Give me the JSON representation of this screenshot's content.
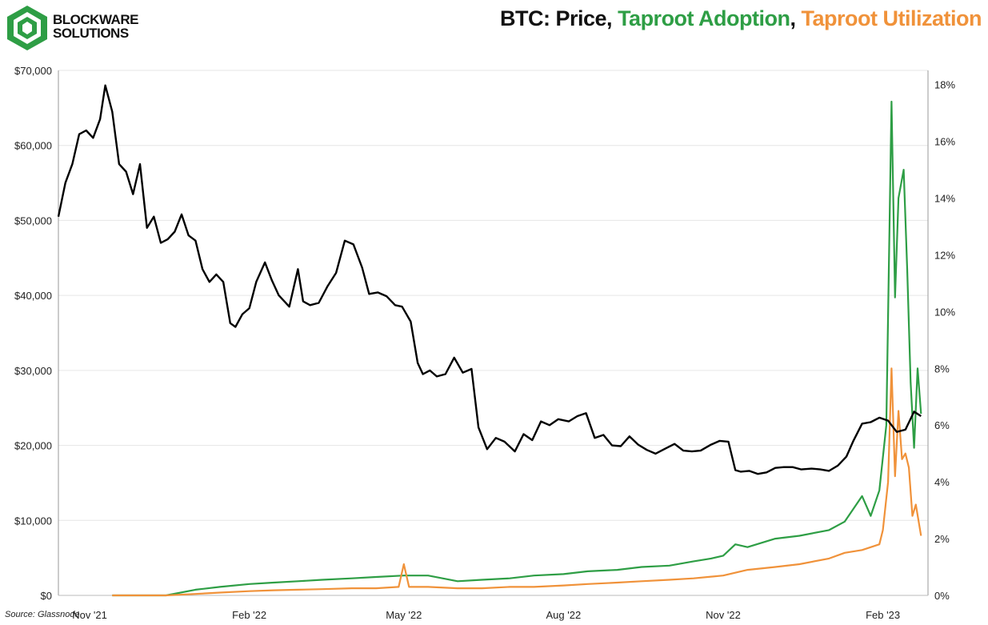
{
  "header": {
    "brand_line1": "BLOCKWARE",
    "brand_line2": "SOLUTIONS",
    "title_parts": [
      {
        "text": "BTC: Price, ",
        "color": "#111111"
      },
      {
        "text": "Taproot Adoption",
        "color": "#2e9e45"
      },
      {
        "text": ", ",
        "color": "#111111"
      },
      {
        "text": "Taproot Utilization",
        "color": "#f0923a"
      }
    ]
  },
  "footer": {
    "source": "Source: Glassnode"
  },
  "colors": {
    "price": "#000000",
    "adoption": "#2e9e45",
    "utilization": "#f0923a",
    "grid": "#e6e6e6",
    "brand": "#2e9e45"
  },
  "chart_data": {
    "type": "line",
    "title": "BTC: Price, Taproot Adoption, Taproot Utilization",
    "x_tick_labels": [
      "Nov '21",
      "Feb '22",
      "May '22",
      "Aug '22",
      "Nov '22",
      "Feb '23"
    ],
    "x_tick_dates": [
      "2021-11-01",
      "2022-02-01",
      "2022-05-01",
      "2022-08-01",
      "2022-11-01",
      "2023-02-01"
    ],
    "xlim": [
      "2021-10-14",
      "2023-02-27"
    ],
    "y_left": {
      "ylim": [
        0,
        70000
      ],
      "tick_labels": [
        "$0",
        "$10,000",
        "$20,000",
        "$30,000",
        "$40,000",
        "$50,000",
        "$60,000",
        "$70,000"
      ]
    },
    "y_right": {
      "ylim": [
        0,
        18.5
      ],
      "tick_labels": [
        "0%",
        "2%",
        "4%",
        "6%",
        "8%",
        "10%",
        "12%",
        "14%",
        "16%",
        "18%"
      ]
    },
    "grid": true,
    "series": [
      {
        "axis": "left",
        "x": [
          "2021-10-14",
          "2021-10-18",
          "2021-10-22",
          "2021-10-26",
          "2021-10-30",
          "2021-11-03",
          "2021-11-07",
          "2021-11-10",
          "2021-11-14",
          "2021-11-18",
          "2021-11-22",
          "2021-11-26",
          "2021-11-30",
          "2021-12-04",
          "2021-12-08",
          "2021-12-12",
          "2021-12-16",
          "2021-12-20",
          "2021-12-24",
          "2021-12-28",
          "2022-01-01",
          "2022-01-05",
          "2022-01-09",
          "2022-01-13",
          "2022-01-17",
          "2022-01-21",
          "2022-01-24",
          "2022-01-28",
          "2022-02-01",
          "2022-02-05",
          "2022-02-10",
          "2022-02-14",
          "2022-02-18",
          "2022-02-24",
          "2022-03-01",
          "2022-03-04",
          "2022-03-08",
          "2022-03-13",
          "2022-03-18",
          "2022-03-23",
          "2022-03-28",
          "2022-04-02",
          "2022-04-07",
          "2022-04-11",
          "2022-04-16",
          "2022-04-21",
          "2022-04-26",
          "2022-04-30",
          "2022-05-05",
          "2022-05-09",
          "2022-05-12",
          "2022-05-16",
          "2022-05-20",
          "2022-05-25",
          "2022-05-30",
          "2022-06-04",
          "2022-06-09",
          "2022-06-13",
          "2022-06-18",
          "2022-06-23",
          "2022-06-28",
          "2022-07-04",
          "2022-07-09",
          "2022-07-14",
          "2022-07-19",
          "2022-07-24",
          "2022-07-29",
          "2022-08-04",
          "2022-08-09",
          "2022-08-14",
          "2022-08-19",
          "2022-08-24",
          "2022-08-29",
          "2022-09-03",
          "2022-09-08",
          "2022-09-13",
          "2022-09-18",
          "2022-09-23",
          "2022-09-28",
          "2022-10-04",
          "2022-10-09",
          "2022-10-14",
          "2022-10-19",
          "2022-10-25",
          "2022-10-30",
          "2022-11-04",
          "2022-11-08",
          "2022-11-11",
          "2022-11-16",
          "2022-11-21",
          "2022-11-26",
          "2022-12-01",
          "2022-12-06",
          "2022-12-11",
          "2022-12-16",
          "2022-12-22",
          "2022-12-27",
          "2023-01-01",
          "2023-01-06",
          "2023-01-11",
          "2023-01-15",
          "2023-01-20",
          "2023-01-25",
          "2023-01-30",
          "2023-02-04",
          "2023-02-09",
          "2023-02-14",
          "2023-02-19",
          "2023-02-23"
        ],
        "values": [
          50500,
          55000,
          57500,
          61500,
          62000,
          61000,
          63500,
          68000,
          64500,
          57500,
          56500,
          53500,
          57500,
          49000,
          50500,
          47000,
          47500,
          48500,
          50800,
          48000,
          47300,
          43500,
          41800,
          42800,
          41800,
          36300,
          35800,
          37500,
          38300,
          41800,
          44400,
          42000,
          40000,
          38500,
          43500,
          39200,
          38700,
          39000,
          41200,
          43000,
          47300,
          46800,
          43700,
          40200,
          40400,
          39900,
          38700,
          38500,
          36500,
          31000,
          29500,
          30000,
          29200,
          29500,
          31700,
          29700,
          30200,
          22400,
          19500,
          21000,
          20500,
          19200,
          21500,
          20700,
          23200,
          22700,
          23500,
          23200,
          23900,
          24300,
          21000,
          21400,
          20000,
          19900,
          21200,
          20100,
          19400,
          18900,
          19500,
          20200,
          19300,
          19200,
          19300,
          20100,
          20600,
          20500,
          16700,
          16500,
          16600,
          16200,
          16400,
          17000,
          17100,
          17100,
          16800,
          16900,
          16800,
          16600,
          17300,
          18500,
          20600,
          22900,
          23100,
          23700,
          23300,
          21800,
          22100,
          24500,
          23900
        ]
      },
      {
        "axis": "right",
        "x": [
          "2021-11-14",
          "2021-12-01",
          "2021-12-15",
          "2022-01-01",
          "2022-01-15",
          "2022-02-01",
          "2022-02-15",
          "2022-03-01",
          "2022-03-15",
          "2022-04-01",
          "2022-04-15",
          "2022-05-01",
          "2022-05-15",
          "2022-06-01",
          "2022-06-15",
          "2022-07-01",
          "2022-07-15",
          "2022-08-01",
          "2022-08-15",
          "2022-09-01",
          "2022-09-15",
          "2022-10-01",
          "2022-10-15",
          "2022-10-25",
          "2022-11-01",
          "2022-11-08",
          "2022-11-15",
          "2022-12-01",
          "2022-12-15",
          "2023-01-01",
          "2023-01-10",
          "2023-01-20",
          "2023-01-25",
          "2023-01-30",
          "2023-02-03",
          "2023-02-06",
          "2023-02-08",
          "2023-02-10",
          "2023-02-13",
          "2023-02-15",
          "2023-02-17",
          "2023-02-19",
          "2023-02-21",
          "2023-02-23"
        ],
        "values": [
          0.0,
          0.0,
          0.0,
          0.2,
          0.3,
          0.4,
          0.45,
          0.5,
          0.55,
          0.6,
          0.65,
          0.7,
          0.7,
          0.5,
          0.55,
          0.6,
          0.7,
          0.75,
          0.85,
          0.9,
          1.0,
          1.05,
          1.2,
          1.3,
          1.4,
          1.8,
          1.7,
          2.0,
          2.1,
          2.3,
          2.6,
          3.5,
          2.8,
          3.7,
          6.0,
          17.4,
          10.5,
          14.0,
          15.0,
          11.5,
          7.5,
          5.2,
          8.0,
          6.4
        ]
      },
      {
        "axis": "right",
        "x": [
          "2021-11-14",
          "2021-12-01",
          "2021-12-15",
          "2022-01-01",
          "2022-01-15",
          "2022-02-01",
          "2022-02-15",
          "2022-03-01",
          "2022-03-15",
          "2022-04-01",
          "2022-04-15",
          "2022-04-28",
          "2022-05-01",
          "2022-05-04",
          "2022-05-15",
          "2022-06-01",
          "2022-06-15",
          "2022-07-01",
          "2022-07-15",
          "2022-08-01",
          "2022-08-15",
          "2022-09-01",
          "2022-09-15",
          "2022-10-01",
          "2022-10-15",
          "2022-11-01",
          "2022-11-15",
          "2022-12-01",
          "2022-12-15",
          "2023-01-01",
          "2023-01-10",
          "2023-01-20",
          "2023-01-30",
          "2023-02-01",
          "2023-02-04",
          "2023-02-06",
          "2023-02-08",
          "2023-02-10",
          "2023-02-12",
          "2023-02-14",
          "2023-02-16",
          "2023-02-18",
          "2023-02-20",
          "2023-02-23"
        ],
        "values": [
          0.0,
          0.0,
          0.0,
          0.05,
          0.1,
          0.15,
          0.18,
          0.2,
          0.22,
          0.25,
          0.25,
          0.3,
          1.1,
          0.3,
          0.3,
          0.25,
          0.25,
          0.3,
          0.3,
          0.35,
          0.4,
          0.45,
          0.5,
          0.55,
          0.6,
          0.7,
          0.9,
          1.0,
          1.1,
          1.3,
          1.5,
          1.6,
          1.8,
          2.3,
          4.0,
          8.0,
          4.2,
          6.5,
          4.8,
          5.0,
          4.5,
          2.8,
          3.2,
          2.1
        ]
      }
    ]
  }
}
